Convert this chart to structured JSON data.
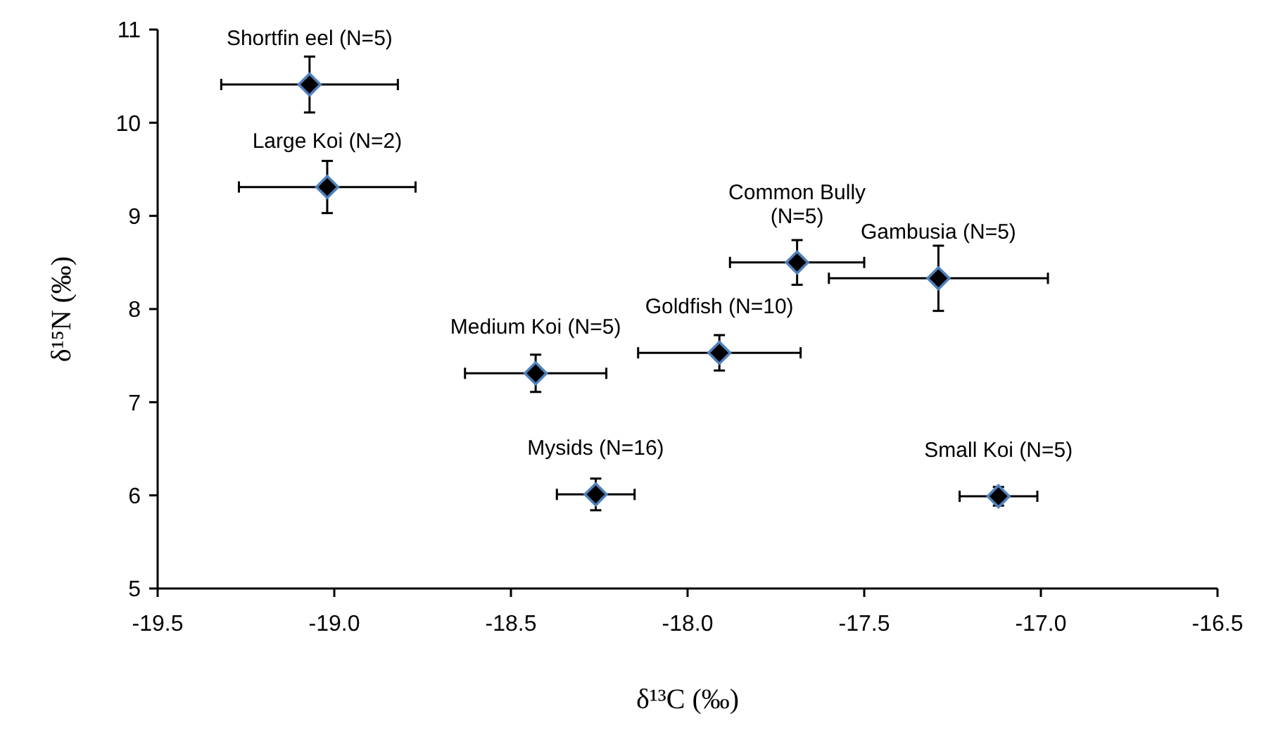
{
  "chart_data": {
    "type": "scatter",
    "xlabel": "δ¹³C (‰)",
    "ylabel": "δ¹⁵N (‰)",
    "x": [
      -19.07,
      -19.02,
      -18.43,
      -17.91,
      -17.69,
      -17.29,
      -18.26,
      -17.12
    ],
    "series": [
      {
        "color": "#000000",
        "values": [
          10.41,
          9.31,
          7.31,
          7.53,
          8.5,
          8.33,
          6.01,
          5.99
        ],
        "errors": [
          0.3,
          0.28,
          0.2,
          0.19,
          0.24,
          0.35,
          0.17,
          0.1
        ],
        "xerrors": [
          0.25,
          0.25,
          0.2,
          0.23,
          0.19,
          0.31,
          0.11,
          0.11
        ]
      }
    ],
    "marker": "diamond",
    "xlim": [
      -19.5,
      -16.5
    ],
    "xticks": [
      {
        "value": -19.5,
        "label": "-19.5"
      },
      {
        "value": -19,
        "label": "-19.0"
      },
      {
        "value": -18.5,
        "label": "-18.5"
      },
      {
        "value": -18,
        "label": "-18.0"
      },
      {
        "value": -17.5,
        "label": "-17.5"
      },
      {
        "value": -17,
        "label": "-17.0"
      },
      {
        "value": -16.5,
        "label": "-16.5"
      }
    ],
    "ylim": [
      5,
      11
    ],
    "yticks": [
      5,
      6,
      7,
      8,
      9,
      10,
      11
    ],
    "annotations": [
      {
        "text": "Shortfin eel (N=5)",
        "x": -19.07,
        "y": 10.41
      },
      {
        "text": "Large Koi (N=2)",
        "x": -19.02,
        "y": 9.31
      },
      {
        "text": "Medium Koi (N=5)",
        "x": -18.43,
        "y": 7.31
      },
      {
        "text": "Goldfish (N=10)",
        "x": -17.91,
        "y": 7.53
      },
      {
        "text": "Common Bully\n(N=5)",
        "x": -17.69,
        "y": 8.5
      },
      {
        "text": "Gambusia (N=5)",
        "x": -17.29,
        "y": 8.33
      },
      {
        "text": "Mysids (N=16)",
        "x": -18.26,
        "y": 6.01
      },
      {
        "text": "Small Koi (N=5)",
        "x": -17.12,
        "y": 5.99
      }
    ]
  }
}
